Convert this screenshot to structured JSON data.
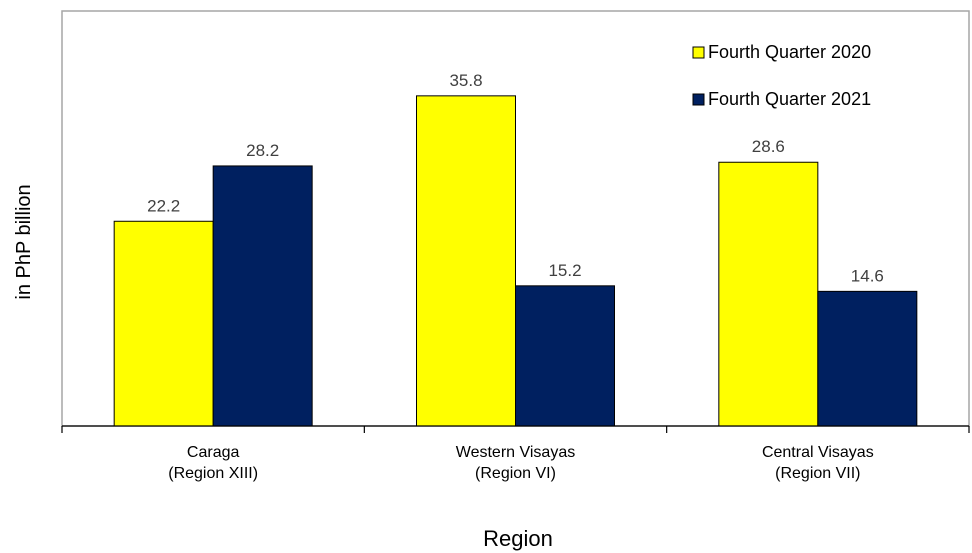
{
  "chart_data": {
    "type": "bar",
    "title": "",
    "xlabel": "Region",
    "ylabel": "in PhP billion",
    "ylim": [
      0,
      45
    ],
    "grid": false,
    "legend_position": "top-right",
    "categories": [
      [
        "Caraga",
        "(Region XIII)"
      ],
      [
        "Western Visayas",
        "(Region VI)"
      ],
      [
        "Central Visayas",
        "(Region VII)"
      ]
    ],
    "series": [
      {
        "name": "Fourth Quarter 2020",
        "color": "#FFFF00",
        "values": [
          22.2,
          35.8,
          28.6
        ]
      },
      {
        "name": "Fourth Quarter 2021",
        "color": "#002060",
        "values": [
          28.2,
          15.2,
          14.6
        ]
      }
    ]
  }
}
